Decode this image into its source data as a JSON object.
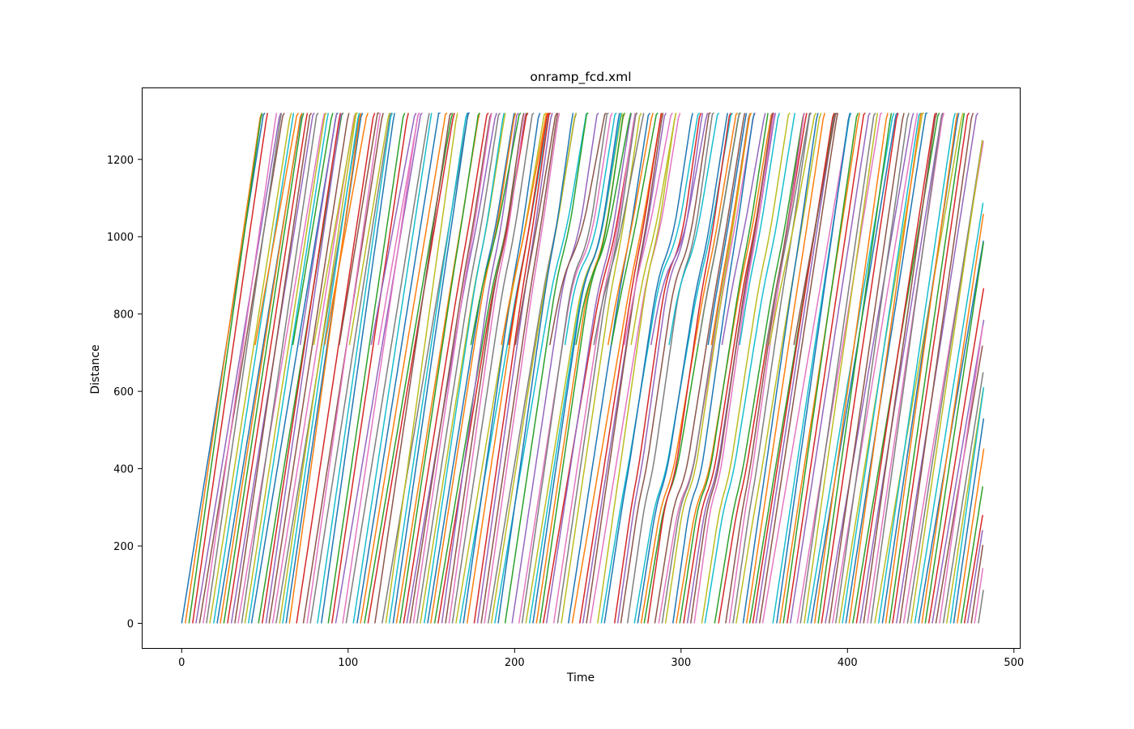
{
  "chart_data": {
    "type": "line",
    "title": "onramp_fcd.xml",
    "xlabel": "Time",
    "ylabel": "Distance",
    "xlim": [
      -24,
      504
    ],
    "ylim": [
      -66,
      1386
    ],
    "xticks": [
      0,
      100,
      200,
      300,
      400,
      500
    ],
    "yticks": [
      0,
      200,
      400,
      600,
      800,
      1000,
      1200
    ],
    "grid": false,
    "legend": "none",
    "road_length": 1320,
    "ramp_merge_distance": 720,
    "time_end": 480,
    "colors": [
      "#1f77b4",
      "#ff7f0e",
      "#2ca02c",
      "#d62728",
      "#9467bd",
      "#8c564b",
      "#e377c2",
      "#7f7f7f",
      "#bcbd22",
      "#17becf"
    ],
    "series_description": "Each vehicle is one line starting at distance 0 (or 720 for ramp vehicles); departures roughly every 2 s from t=0 to t=480; travel time ~45-60 s to reach 1320; congestion waves around distance 800-1050 and 250-400 near t=180-370."
  }
}
